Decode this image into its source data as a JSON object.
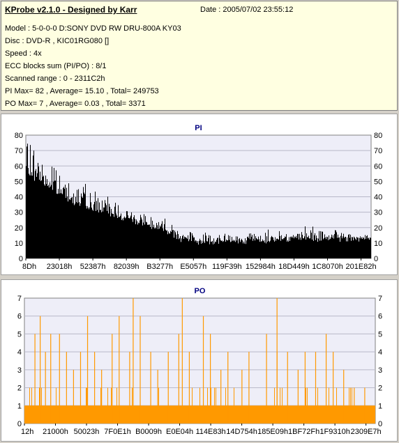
{
  "header": {
    "title": "KProbe v2.1.0 - Designed by Karr",
    "date": "Date : 2005/07/02 23:55:12",
    "lines": [
      "Model : 5-0-0-0 D:SONY    DVD RW DRU-800A  KY03",
      "Disc : DVD-R , KIC01RG080   []",
      "Speed : 4x",
      "ECC blocks sum (PI/PO) : 8/1",
      "Scanned range : 0 - 2311C2h",
      "PI Max= 82 , Average= 15.10 , Total= 249753",
      "PO Max= 7 , Average= 0.03 , Total= 3371"
    ]
  },
  "colors": {
    "pi_bar": "#000000",
    "po_bar": "#ff9900",
    "plot_bg": "#eeeef8",
    "title": "#000080"
  },
  "chart_data": [
    {
      "type": "area",
      "title": "PI",
      "ylim": [
        0,
        80
      ],
      "yticks": [
        0,
        10,
        20,
        30,
        40,
        50,
        60,
        70,
        80
      ],
      "xticks": [
        "8Dh",
        "23018h",
        "52387h",
        "82039h",
        "B3277h",
        "E5057h",
        "119F39h",
        "152984h",
        "18D449h",
        "1C8070h",
        "201E82h"
      ],
      "x": [
        0,
        0.05,
        0.1,
        0.15,
        0.2,
        0.25,
        0.3,
        0.35,
        0.4,
        0.45,
        0.5,
        0.55,
        0.6,
        0.65,
        0.7,
        0.75,
        0.8,
        0.85,
        0.9,
        0.95,
        1.0
      ],
      "baseline": [
        55,
        47,
        40,
        35,
        31,
        28,
        24,
        21,
        18,
        12,
        10,
        10,
        10,
        11,
        11,
        12,
        12,
        12,
        12,
        12,
        12
      ],
      "peaks": [
        82,
        72,
        60,
        52,
        45,
        40,
        35,
        30,
        28,
        22,
        17,
        18,
        18,
        18,
        18,
        20,
        20,
        20,
        19,
        18,
        16
      ]
    },
    {
      "type": "bar",
      "title": "PO",
      "ylim": [
        0,
        7
      ],
      "yticks": [
        0,
        1,
        2,
        3,
        4,
        5,
        6,
        7
      ],
      "xticks": [
        "12h",
        "21000h",
        "50023h",
        "7F0E1h",
        "B0009h",
        "E0E04h",
        "114E83h",
        "14D754h",
        "185E09h",
        "1BF72Fh",
        "1F9310h",
        "2309E7h"
      ],
      "baseline_value": 1,
      "spikes": [
        {
          "x": 0.03,
          "y": 5
        },
        {
          "x": 0.045,
          "y": 6
        },
        {
          "x": 0.06,
          "y": 4
        },
        {
          "x": 0.075,
          "y": 5
        },
        {
          "x": 0.1,
          "y": 5
        },
        {
          "x": 0.12,
          "y": 4
        },
        {
          "x": 0.14,
          "y": 3
        },
        {
          "x": 0.16,
          "y": 4
        },
        {
          "x": 0.18,
          "y": 6
        },
        {
          "x": 0.2,
          "y": 4
        },
        {
          "x": 0.22,
          "y": 3
        },
        {
          "x": 0.25,
          "y": 5
        },
        {
          "x": 0.27,
          "y": 6
        },
        {
          "x": 0.3,
          "y": 4
        },
        {
          "x": 0.33,
          "y": 6
        },
        {
          "x": 0.36,
          "y": 4
        },
        {
          "x": 0.38,
          "y": 3
        },
        {
          "x": 0.41,
          "y": 4
        },
        {
          "x": 0.44,
          "y": 5
        },
        {
          "x": 0.47,
          "y": 4
        },
        {
          "x": 0.51,
          "y": 6
        },
        {
          "x": 0.53,
          "y": 5
        },
        {
          "x": 0.56,
          "y": 3
        },
        {
          "x": 0.58,
          "y": 4
        },
        {
          "x": 0.62,
          "y": 3
        },
        {
          "x": 0.64,
          "y": 4
        },
        {
          "x": 0.69,
          "y": 5
        },
        {
          "x": 0.72,
          "y": 4
        },
        {
          "x": 0.75,
          "y": 4
        },
        {
          "x": 0.78,
          "y": 3
        },
        {
          "x": 0.8,
          "y": 4
        },
        {
          "x": 0.83,
          "y": 4
        },
        {
          "x": 0.86,
          "y": 5
        },
        {
          "x": 0.88,
          "y": 4
        },
        {
          "x": 0.91,
          "y": 3
        },
        {
          "x": 0.94,
          "y": 2
        },
        {
          "x": 0.97,
          "y": 2
        },
        {
          "x": 0.31,
          "y": 7
        },
        {
          "x": 0.45,
          "y": 7
        },
        {
          "x": 0.72,
          "y": 7
        }
      ]
    }
  ]
}
